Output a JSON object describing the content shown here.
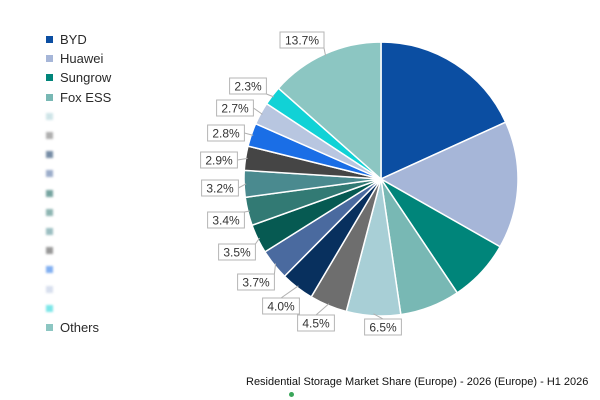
{
  "chart_data": {
    "type": "pie",
    "title": "Residential Storage Market Share (Europe) - 2026 (Europe) - H1 2026",
    "legend_position": "left",
    "slices": [
      {
        "label": "BYD",
        "value": 18.5,
        "color": "#0b4ea2",
        "data_label": ""
      },
      {
        "label": "Huawei",
        "value": 15.3,
        "color": "#a6b6d8",
        "data_label": ""
      },
      {
        "label": "Sungrow",
        "value": 7.5,
        "color": "#00857a",
        "data_label": ""
      },
      {
        "label": "Fox ESS",
        "value": 7.2,
        "color": "#78b8b4",
        "data_label": ""
      },
      {
        "label": "",
        "value": 6.5,
        "color": "#a8cfd6",
        "data_label": "6.5%"
      },
      {
        "label": "",
        "value": 4.5,
        "color": "#6e6e6e",
        "data_label": "4.5%"
      },
      {
        "label": "",
        "value": 4.0,
        "color": "#08305e",
        "data_label": "4.0%"
      },
      {
        "label": "",
        "value": 3.7,
        "color": "#4a6a9f",
        "data_label": "3.7%"
      },
      {
        "label": "",
        "value": 3.5,
        "color": "#065a52",
        "data_label": "3.5%"
      },
      {
        "label": "",
        "value": 3.4,
        "color": "#327a74",
        "data_label": "3.4%"
      },
      {
        "label": "",
        "value": 3.2,
        "color": "#4a8a8f",
        "data_label": "3.2%"
      },
      {
        "label": "",
        "value": 2.9,
        "color": "#454545",
        "data_label": "2.9%"
      },
      {
        "label": "",
        "value": 2.8,
        "color": "#1a6ee6",
        "data_label": "2.8%"
      },
      {
        "label": "",
        "value": 2.7,
        "color": "#b8c6e0",
        "data_label": "2.7%"
      },
      {
        "label": "",
        "value": 2.3,
        "color": "#11d2d6",
        "data_label": "2.3%"
      },
      {
        "label": "Others",
        "value": 13.7,
        "color": "#8cc6c2",
        "data_label": "13.7%"
      }
    ]
  },
  "legend": {
    "visible_items": [
      "BYD",
      "Huawei",
      "Sungrow",
      "Fox ESS",
      "Others"
    ],
    "blurred_item_count": 11
  }
}
